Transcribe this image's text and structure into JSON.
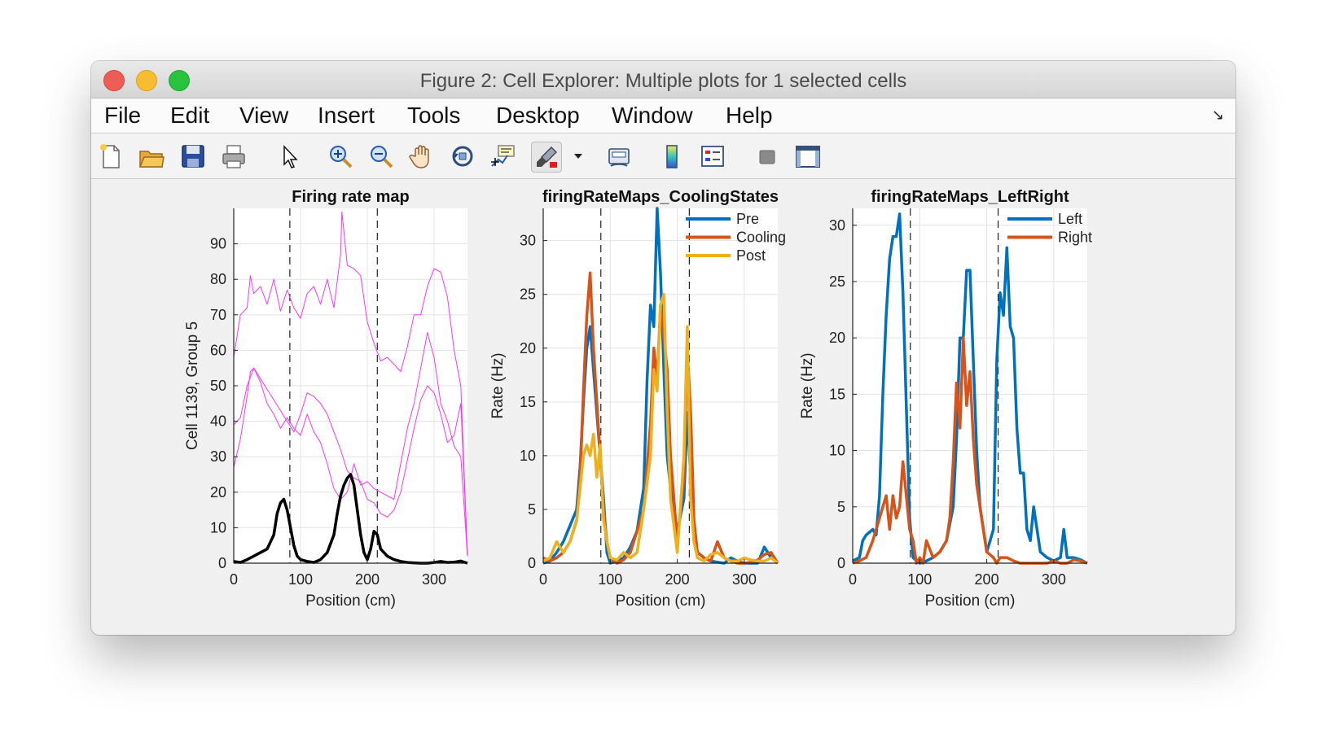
{
  "window": {
    "title": "Figure 2: Cell Explorer: Multiple plots for 1 selected cells"
  },
  "menu": {
    "items": [
      "File",
      "Edit",
      "View",
      "Insert",
      "Tools",
      "Desktop",
      "Window",
      "Help"
    ]
  },
  "toolbar": {
    "icons": [
      "new-figure-icon",
      "open-file-icon",
      "save-icon",
      "print-icon",
      "pointer-icon",
      "zoom-in-icon",
      "zoom-out-icon",
      "pan-hand-icon",
      "rotate-3d-icon",
      "data-cursor-icon",
      "brush-icon",
      "brush-dropdown-icon",
      "link-plot-icon",
      "colorbar-icon",
      "legend-icon",
      "hide-plot-tools-icon",
      "show-plot-tools-icon"
    ]
  },
  "colors": {
    "magenta": "#ff33ff",
    "black": "#000000",
    "blue": "#0072bd",
    "orange": "#d95319",
    "yellow": "#edb120"
  },
  "chart_data": [
    {
      "type": "line",
      "title": "Firing rate map",
      "xlabel": "Position (cm)",
      "ylabel": "Cell 1139, Group 5",
      "xlim": [
        0,
        350
      ],
      "ylim": [
        0,
        100
      ],
      "xticks": [
        0,
        100,
        200,
        300
      ],
      "yticks": [
        0,
        10,
        20,
        30,
        40,
        50,
        60,
        70,
        80,
        90
      ],
      "vlines": [
        84,
        215
      ],
      "grid": true,
      "series": [
        {
          "color": "#ff33ff",
          "width": 1,
          "x": [
            0,
            10,
            20,
            25,
            30,
            40,
            50,
            60,
            70,
            80,
            90,
            100,
            110,
            120,
            130,
            140,
            150,
            160,
            162,
            170,
            180,
            190,
            200,
            210,
            220,
            230,
            240,
            250,
            260,
            270,
            280,
            290,
            300,
            310,
            320,
            330,
            340,
            350
          ],
          "y": [
            58,
            70,
            72,
            81,
            76,
            78,
            73,
            80,
            71,
            77,
            72,
            69,
            76,
            78,
            73,
            80,
            72,
            87,
            99,
            84,
            83,
            81,
            68,
            62,
            57,
            58,
            56,
            54,
            61,
            70,
            70,
            78,
            83,
            82,
            75,
            60,
            50,
            2
          ]
        },
        {
          "color": "#ff33ff",
          "width": 1,
          "x": [
            0,
            10,
            20,
            30,
            40,
            50,
            60,
            70,
            80,
            90,
            100,
            110,
            120,
            130,
            140,
            150,
            160,
            170,
            180,
            190,
            200,
            210,
            220,
            230,
            240,
            250,
            260,
            270,
            280,
            290,
            300,
            310,
            320,
            330,
            340,
            350
          ],
          "y": [
            39,
            41,
            50,
            55,
            51,
            45,
            42,
            38,
            41,
            38,
            36,
            42,
            37,
            34,
            28,
            21,
            18,
            20,
            28,
            22,
            23,
            21,
            20,
            19,
            18,
            28,
            38,
            45,
            55,
            65,
            58,
            45,
            40,
            33,
            30,
            2
          ]
        },
        {
          "color": "#ff33ff",
          "width": 1,
          "x": [
            0,
            10,
            20,
            25,
            30,
            40,
            50,
            60,
            70,
            80,
            90,
            100,
            110,
            120,
            130,
            140,
            150,
            160,
            170,
            180,
            190,
            200,
            210,
            220,
            230,
            240,
            250,
            260,
            270,
            280,
            290,
            300,
            310,
            320,
            330,
            340,
            350
          ],
          "y": [
            27,
            35,
            47,
            54,
            55,
            52,
            49,
            46,
            43,
            40,
            37,
            42,
            48,
            47,
            45,
            42,
            37,
            32,
            26,
            24,
            23,
            18,
            17,
            14,
            13,
            15,
            20,
            29,
            38,
            46,
            50,
            48,
            42,
            34,
            36,
            45,
            2
          ]
        },
        {
          "color": "#000000",
          "width": 3.5,
          "x": [
            0,
            10,
            20,
            30,
            40,
            50,
            60,
            65,
            70,
            75,
            80,
            85,
            90,
            95,
            100,
            110,
            120,
            130,
            140,
            150,
            155,
            160,
            165,
            170,
            175,
            180,
            185,
            190,
            195,
            200,
            205,
            210,
            215,
            220,
            230,
            240,
            250,
            260,
            270,
            280,
            290,
            300,
            310,
            320,
            330,
            340,
            350
          ],
          "y": [
            0.5,
            0.2,
            1,
            2,
            3,
            4,
            8,
            14,
            17,
            18,
            15,
            10,
            5,
            2,
            1,
            0.5,
            0.2,
            1,
            3,
            8,
            14,
            19,
            22,
            24,
            25,
            22,
            15,
            8,
            3,
            1,
            4,
            9,
            8,
            4,
            2,
            1,
            0.5,
            0.2,
            0.1,
            0,
            0,
            0.2,
            0.5,
            0.2,
            0.3,
            0.6,
            0
          ]
        }
      ]
    },
    {
      "type": "line",
      "title": "firingRateMaps_CoolingStates",
      "xlabel": "Position (cm)",
      "ylabel": "Rate (Hz)",
      "xlim": [
        0,
        350
      ],
      "ylim": [
        0,
        33
      ],
      "xticks": [
        0,
        100,
        200,
        300
      ],
      "yticks": [
        0,
        5,
        10,
        15,
        20,
        25,
        30
      ],
      "vlines": [
        86,
        218
      ],
      "grid": true,
      "legend": "top-right",
      "series": [
        {
          "name": "Pre",
          "color": "#0072bd",
          "width": 3.5,
          "x": [
            0,
            10,
            20,
            30,
            40,
            50,
            55,
            60,
            65,
            70,
            75,
            80,
            85,
            90,
            95,
            100,
            110,
            120,
            130,
            140,
            150,
            155,
            160,
            165,
            170,
            175,
            180,
            185,
            190,
            195,
            200,
            210,
            215,
            220,
            225,
            230,
            240,
            250,
            260,
            270,
            280,
            290,
            300,
            310,
            320,
            330,
            340,
            350
          ],
          "y": [
            0,
            0.2,
            1,
            2,
            3.5,
            5,
            9,
            15,
            20,
            22,
            18,
            14,
            10,
            6,
            1,
            0,
            0.2,
            0.5,
            1.5,
            3,
            7,
            17,
            24,
            22,
            33,
            27,
            18,
            10,
            7,
            4,
            3,
            6,
            14,
            8,
            3,
            1,
            0.5,
            0.2,
            0.1,
            0,
            0.5,
            0.2,
            0,
            0,
            0,
            1.5,
            0.5,
            0
          ]
        },
        {
          "name": "Cooling",
          "color": "#d95319",
          "width": 3.5,
          "x": [
            0,
            10,
            20,
            30,
            40,
            50,
            55,
            60,
            65,
            70,
            75,
            80,
            85,
            90,
            95,
            100,
            110,
            120,
            130,
            140,
            150,
            160,
            165,
            170,
            175,
            180,
            185,
            190,
            200,
            210,
            215,
            220,
            225,
            230,
            240,
            250,
            260,
            270,
            280,
            290,
            300,
            310,
            320,
            330,
            340,
            350
          ],
          "y": [
            0.5,
            0.2,
            0.5,
            1,
            2,
            4,
            8,
            16,
            23,
            27,
            20,
            15,
            10,
            5,
            2,
            0.5,
            0,
            0.3,
            1,
            3,
            5,
            13,
            20,
            17,
            24,
            21,
            18,
            10,
            2,
            8,
            20,
            14,
            4,
            1,
            0.5,
            0.2,
            2,
            0.5,
            0.2,
            0,
            0,
            0.1,
            0.3,
            0.8,
            1,
            0
          ]
        },
        {
          "name": "Post",
          "color": "#edb120",
          "width": 3.5,
          "x": [
            0,
            10,
            20,
            30,
            40,
            50,
            55,
            60,
            65,
            70,
            75,
            80,
            85,
            90,
            95,
            100,
            110,
            120,
            130,
            140,
            150,
            160,
            165,
            170,
            175,
            180,
            185,
            190,
            200,
            210,
            215,
            220,
            225,
            230,
            240,
            250,
            260,
            270,
            280,
            290,
            300,
            310,
            320,
            330,
            340,
            350
          ],
          "y": [
            0.2,
            0.5,
            2,
            1,
            2,
            4,
            7,
            10,
            11,
            10,
            12,
            8,
            11,
            4,
            2,
            0.5,
            0.3,
            1,
            0.5,
            1,
            5,
            10,
            18,
            16,
            24,
            25,
            14,
            6,
            1,
            10,
            22,
            6,
            2,
            0.5,
            0.2,
            0.8,
            1,
            0.5,
            0.2,
            0.2,
            0.5,
            0.3,
            0.2,
            0.2,
            0.5,
            0
          ]
        }
      ]
    },
    {
      "type": "line",
      "title": "firingRateMaps_LeftRight",
      "xlabel": "Position (cm)",
      "ylabel": "Rate (Hz)",
      "xlim": [
        0,
        350
      ],
      "ylim": [
        0,
        31.5
      ],
      "xticks": [
        0,
        100,
        200,
        300
      ],
      "yticks": [
        0,
        5,
        10,
        15,
        20,
        25,
        30
      ],
      "vlines": [
        86,
        217
      ],
      "grid": true,
      "legend": "top-right",
      "series": [
        {
          "name": "Left",
          "color": "#0072bd",
          "width": 3.5,
          "x": [
            0,
            10,
            15,
            20,
            30,
            35,
            40,
            45,
            50,
            55,
            60,
            65,
            70,
            75,
            80,
            85,
            90,
            100,
            110,
            120,
            130,
            140,
            150,
            155,
            160,
            165,
            170,
            175,
            180,
            185,
            190,
            200,
            210,
            215,
            220,
            225,
            230,
            235,
            240,
            245,
            250,
            255,
            260,
            265,
            270,
            280,
            290,
            300,
            310,
            315,
            320,
            330,
            340,
            350
          ],
          "y": [
            0.2,
            0.5,
            2,
            2.5,
            3,
            2.5,
            6,
            15,
            22,
            27,
            29,
            29,
            31,
            24,
            14,
            4,
            0.5,
            0,
            0.2,
            0.5,
            1,
            2,
            5,
            11,
            20,
            20,
            26,
            26,
            18,
            10,
            5,
            1,
            3,
            18,
            24,
            22,
            28,
            21,
            20,
            12,
            8,
            8,
            3,
            2,
            5,
            1,
            0.5,
            0.2,
            0.5,
            3,
            0.5,
            0.5,
            0.3,
            0
          ]
        },
        {
          "name": "Right",
          "color": "#d95319",
          "width": 3.5,
          "x": [
            0,
            10,
            20,
            30,
            40,
            50,
            55,
            60,
            65,
            70,
            75,
            80,
            85,
            90,
            95,
            100,
            105,
            110,
            120,
            130,
            140,
            145,
            150,
            155,
            160,
            165,
            170,
            175,
            180,
            185,
            190,
            200,
            210,
            215,
            220,
            230,
            240,
            250,
            260,
            270,
            280,
            290,
            300,
            310,
            320,
            330,
            340,
            350
          ],
          "y": [
            0,
            0.2,
            0.5,
            2,
            4,
            6,
            3,
            6,
            4,
            5,
            9,
            6,
            3,
            2,
            0,
            0.5,
            0,
            2,
            0.5,
            1,
            2,
            4,
            9,
            16,
            12,
            20,
            14,
            17,
            11,
            7,
            5,
            1,
            0.5,
            0,
            0.5,
            0.5,
            0.2,
            0,
            0,
            0,
            0,
            0,
            0.2,
            0,
            0,
            0.3,
            0.2,
            0
          ]
        }
      ]
    }
  ]
}
